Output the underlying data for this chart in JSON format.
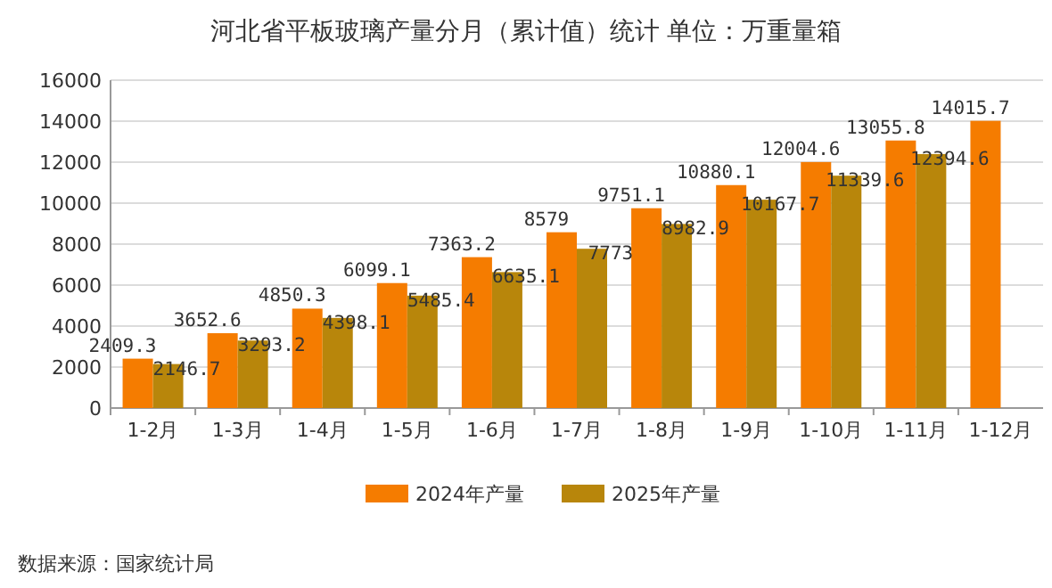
{
  "chart_data": {
    "type": "bar",
    "title": "河北省平板玻璃产量分月（累计值）统计  单位：万重量箱",
    "categories": [
      "1-2月",
      "1-3月",
      "1-4月",
      "1-5月",
      "1-6月",
      "1-7月",
      "1-8月",
      "1-9月",
      "1-10月",
      "1-11月",
      "1-12月"
    ],
    "series": [
      {
        "name": "2024年产量",
        "color": "#f57c00",
        "values": [
          2409.3,
          3652.6,
          4850.3,
          6099.1,
          7363.2,
          8579,
          9751.1,
          10880.1,
          12004.6,
          13055.8,
          14015.7
        ]
      },
      {
        "name": "2025年产量",
        "color": "#b8860b",
        "values": [
          2146.7,
          3293.2,
          4398.1,
          5485.4,
          6635.1,
          7773,
          8982.9,
          10167.7,
          11339.6,
          12394.6,
          null
        ]
      }
    ],
    "ylim": [
      0,
      16000
    ],
    "yticks": [
      0,
      2000,
      4000,
      6000,
      8000,
      10000,
      12000,
      14000,
      16000
    ],
    "grid": "y",
    "legend": "bottom",
    "data_labels": true,
    "annotations": [
      "数据来源：国家统计局"
    ]
  }
}
